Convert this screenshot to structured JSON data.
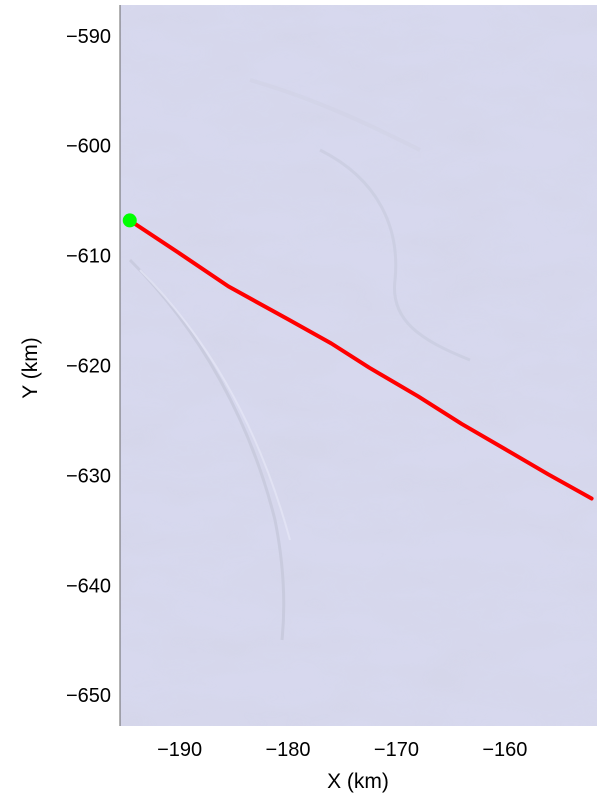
{
  "chart_data": {
    "type": "line",
    "title": "",
    "xlabel": "X (km)",
    "ylabel": "Y (km)",
    "xlim": [
      -195.5,
      -151.5
    ],
    "ylim": [
      -652.8,
      -587.2
    ],
    "xticks": [
      -190,
      -180,
      -170,
      -160
    ],
    "yticks": [
      -590,
      -600,
      -610,
      -620,
      -630,
      -640,
      -650
    ],
    "xtick_labels": [
      "−190",
      "−180",
      "−170",
      "−160"
    ],
    "ytick_labels": [
      "−590",
      "−600",
      "−610",
      "−620",
      "−630",
      "−640",
      "−650"
    ],
    "grid": false,
    "background": "satellite imagery (pale lavender ice surface)",
    "series": [
      {
        "color": "#ff0000",
        "x": [
          -194.6,
          -190.0,
          -185.5,
          -180.0,
          -176.0,
          -172.5,
          -168.0,
          -164.0,
          -160.0,
          -156.0,
          -152.0
        ],
        "y": [
          -606.8,
          -609.8,
          -612.8,
          -615.8,
          -618.0,
          -620.2,
          -622.8,
          -625.3,
          -627.6,
          -629.9,
          -632.1
        ]
      },
      {
        "color": "#00ff00",
        "marker": "o",
        "x": [
          -194.6
        ],
        "y": [
          -606.8
        ]
      }
    ]
  }
}
